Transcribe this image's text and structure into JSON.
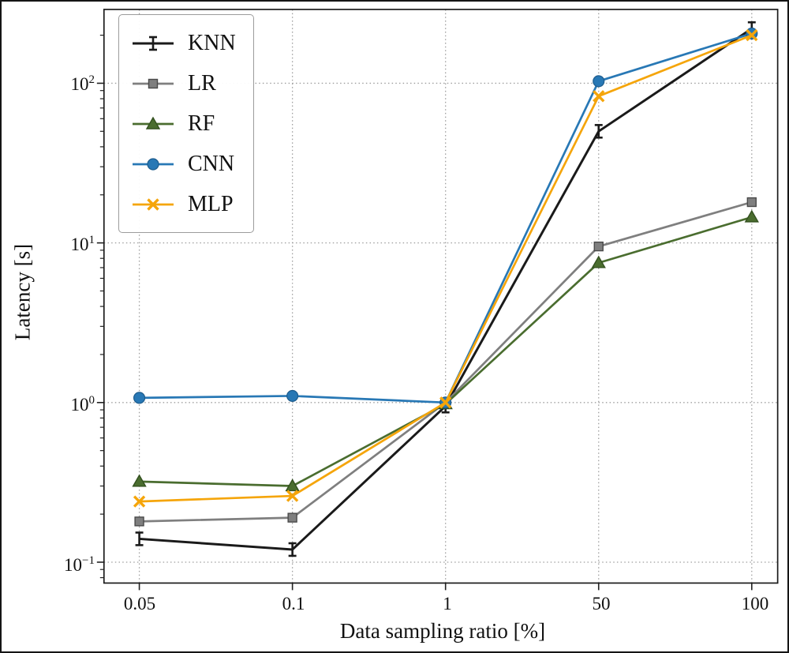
{
  "chart_data": {
    "type": "line",
    "xlabel": "Data sampling ratio [%]",
    "ylabel": "Latency [s]",
    "x_scale": "categorical",
    "y_scale": "log",
    "x_categories": [
      "0.05",
      "0.1",
      "1",
      "50",
      "100"
    ],
    "y_tick_exponents": [
      -1,
      0,
      1,
      2
    ],
    "ylim": [
      0.074,
      290
    ],
    "grid": "dotted",
    "legend_position": "upper-left",
    "series": [
      {
        "name": "KNN",
        "color": "#1a1a1a",
        "edge": "#1a1a1a",
        "marker": "errorbar",
        "values": [
          0.14,
          0.12,
          0.95,
          50,
          220
        ]
      },
      {
        "name": "LR",
        "color": "#7f7f7f",
        "edge": "#4a4a4a",
        "marker": "square",
        "values": [
          0.18,
          0.19,
          1.0,
          9.5,
          18
        ]
      },
      {
        "name": "RF",
        "color": "#4a6d2f",
        "edge": "#33501f",
        "marker": "triangle",
        "values": [
          0.32,
          0.3,
          0.98,
          7.5,
          14.5
        ]
      },
      {
        "name": "CNN",
        "color": "#2878b5",
        "edge": "#1d5c8d",
        "marker": "circle",
        "values": [
          1.07,
          1.1,
          1.0,
          103,
          205
        ]
      },
      {
        "name": "MLP",
        "color": "#f5a50a",
        "edge": "#c98400",
        "marker": "x",
        "values": [
          0.24,
          0.26,
          1.0,
          83,
          200
        ]
      }
    ]
  }
}
